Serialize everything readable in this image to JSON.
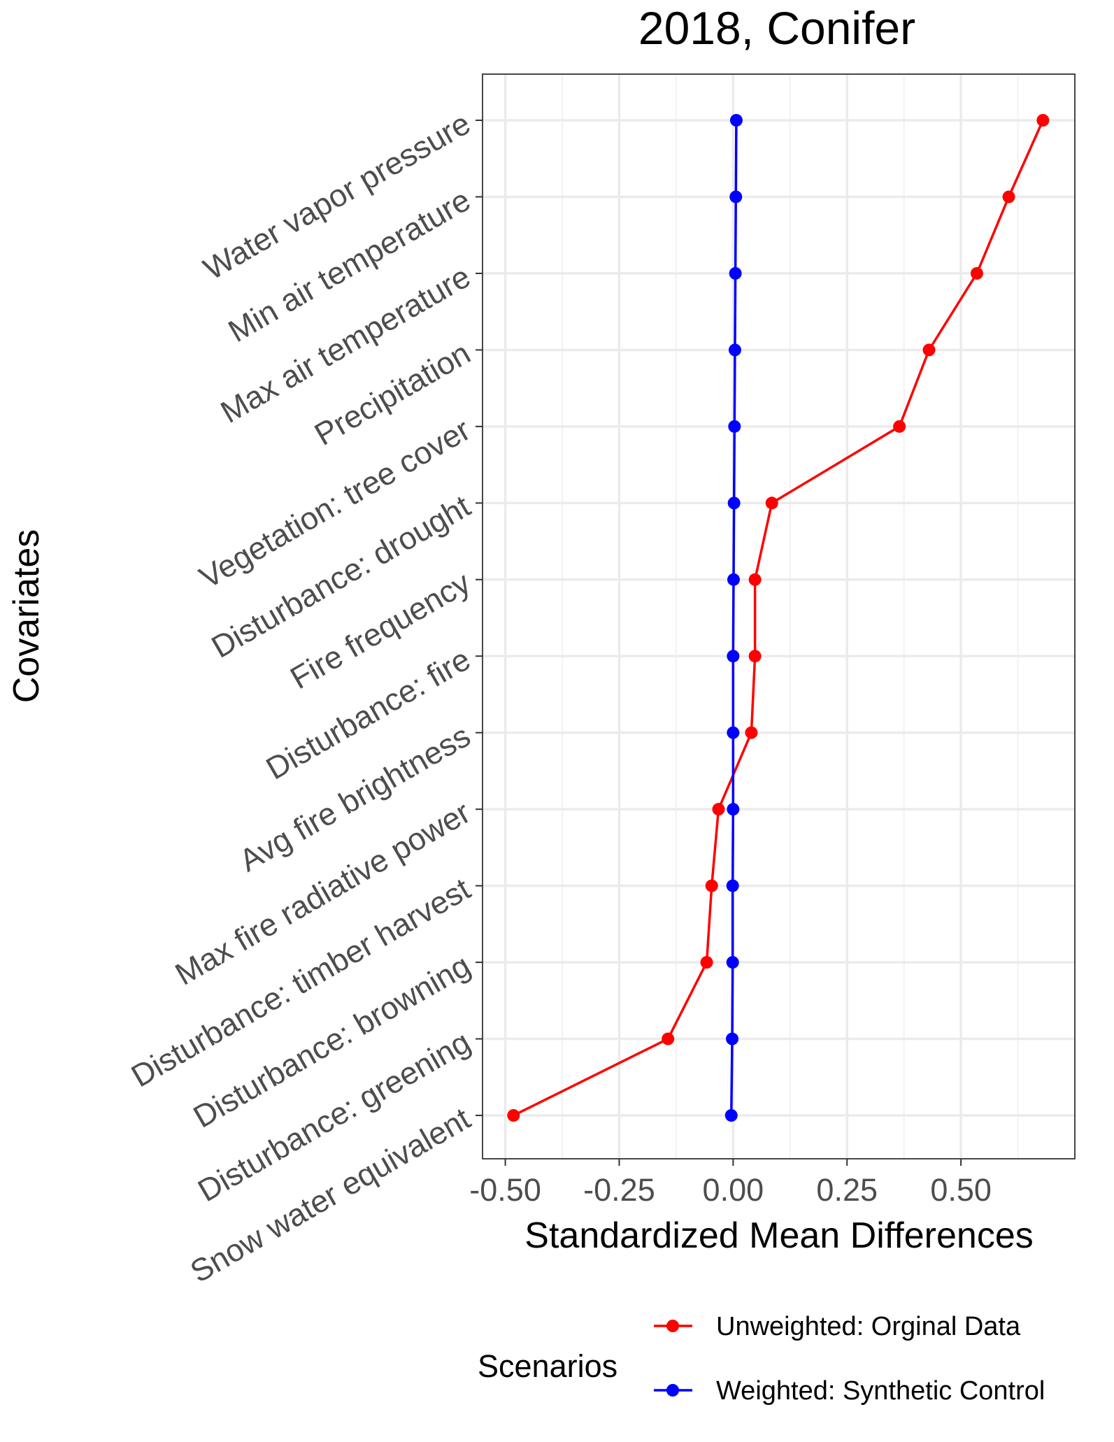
{
  "chart_data": {
    "type": "line",
    "title": "2018, Conifer",
    "xlabel": "Standardized Mean Differences",
    "ylabel": "Covariates",
    "xlim": [
      -0.55,
      0.75
    ],
    "x_ticks": [
      -0.5,
      -0.25,
      0.0,
      0.25,
      0.5
    ],
    "x_tick_labels": [
      "-0.50",
      "-0.25",
      "0.00",
      "0.25",
      "0.50"
    ],
    "categories": [
      "Water vapor pressure",
      "Min air temperature",
      "Max air temperature",
      "Precipitation",
      "Vegetation: tree cover",
      "Disturbance: drought",
      "Fire frequency",
      "Disturbance: fire",
      "Avg fire brightness",
      "Max fire radiative power",
      "Disturbance: timber harvest",
      "Disturbance: browning",
      "Disturbance: greening",
      "Snow water equivalent"
    ],
    "series": [
      {
        "name": "Unweighted: Orginal Data",
        "color": "#ff0000",
        "values": [
          0.68,
          0.605,
          0.535,
          0.43,
          0.365,
          0.085,
          0.048,
          0.048,
          0.04,
          -0.032,
          -0.047,
          -0.058,
          -0.143,
          -0.482
        ]
      },
      {
        "name": "Weighted: Synthetic Control",
        "color": "#0000ff",
        "values": [
          0.007,
          0.006,
          0.005,
          0.004,
          0.003,
          0.002,
          0.001,
          0.0,
          0.0,
          0.0,
          -0.001,
          -0.001,
          -0.002,
          -0.004
        ]
      }
    ],
    "legend": {
      "title": "Scenarios",
      "position": "bottom-right"
    },
    "grid": true
  }
}
